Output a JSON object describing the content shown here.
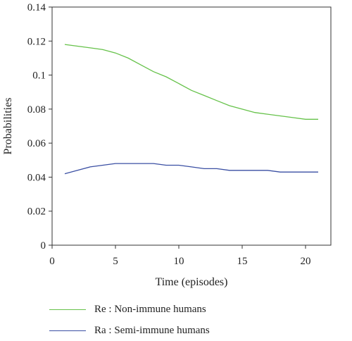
{
  "chart_data": {
    "type": "line",
    "xlabel": "Time (episodes)",
    "ylabel": "Probabilities",
    "xlim": [
      0,
      22
    ],
    "ylim": [
      0,
      0.14
    ],
    "xticks": [
      0,
      5,
      10,
      15,
      20
    ],
    "xtick_labels": [
      "0",
      "5",
      "10",
      "15",
      "20"
    ],
    "yticks": [
      0,
      0.02,
      0.04,
      0.06,
      0.08,
      0.1,
      0.12,
      0.14
    ],
    "ytick_labels": [
      "0",
      "0.02",
      "0.04",
      "0.06",
      "0.08",
      "0.1",
      "0.12",
      "0.14"
    ],
    "x": [
      1,
      2,
      3,
      4,
      5,
      6,
      7,
      8,
      9,
      10,
      11,
      12,
      13,
      14,
      15,
      16,
      17,
      18,
      19,
      20,
      21
    ],
    "series": [
      {
        "name": "Re : Non-immune humans",
        "color": "#66c24a",
        "values": [
          0.118,
          0.117,
          0.116,
          0.115,
          0.113,
          0.11,
          0.106,
          0.102,
          0.099,
          0.095,
          0.091,
          0.088,
          0.085,
          0.082,
          0.08,
          0.078,
          0.077,
          0.076,
          0.075,
          0.074,
          0.074
        ]
      },
      {
        "name": "Ra : Semi-immune humans",
        "color": "#3a4fa3",
        "values": [
          0.042,
          0.044,
          0.046,
          0.047,
          0.048,
          0.048,
          0.048,
          0.048,
          0.047,
          0.047,
          0.046,
          0.045,
          0.045,
          0.044,
          0.044,
          0.044,
          0.044,
          0.043,
          0.043,
          0.043,
          0.043
        ]
      }
    ],
    "grid": false,
    "legend_position": "bottom-left"
  }
}
